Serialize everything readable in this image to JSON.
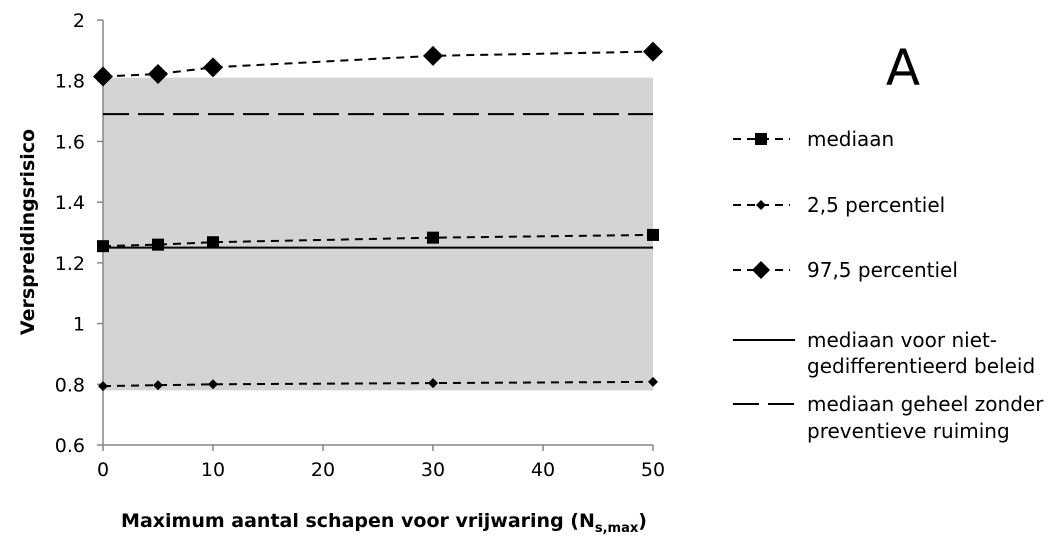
{
  "chart_data": {
    "type": "line",
    "panel_label": "A",
    "xlabel": "Maximum aantal schapen voor vrijwaring (N",
    "xlabel_subscript": "s,max",
    "xlabel_close": ")",
    "ylabel": "Verspreidingsrisico",
    "xlim": [
      0,
      50
    ],
    "ylim": [
      0.6,
      2
    ],
    "x_ticks": [
      "0",
      "10",
      "20",
      "30",
      "40",
      "50"
    ],
    "y_ticks": [
      "0.6",
      "0.8",
      "1",
      "1.2",
      "1.4",
      "1.6",
      "1.8",
      "2"
    ],
    "shaded_band": [
      0.78,
      1.81
    ],
    "series": [
      {
        "name": "mediaan",
        "marker": "square",
        "x": [
          0,
          5,
          10,
          30,
          50
        ],
        "y": [
          1.255,
          1.26,
          1.268,
          1.283,
          1.292
        ]
      },
      {
        "name": "2,5 percentiel",
        "marker": "small-diamond",
        "x": [
          0,
          5,
          10,
          30,
          50
        ],
        "y": [
          0.794,
          0.797,
          0.8,
          0.804,
          0.808
        ]
      },
      {
        "name": "97,5 percentiel",
        "marker": "diamond",
        "x": [
          0,
          5,
          10,
          30,
          50
        ],
        "y": [
          1.814,
          1.822,
          1.844,
          1.882,
          1.896
        ]
      }
    ],
    "reference_lines": [
      {
        "name_line1": "mediaan voor niet-",
        "name_line2": "gedifferentieerd beleid",
        "style": "solid",
        "y": 1.25
      },
      {
        "name_line1": "mediaan geheel zonder",
        "name_line2": "preventieve ruiming",
        "style": "long-dash",
        "y": 1.69
      }
    ],
    "grid": false,
    "legend_position": "right"
  }
}
